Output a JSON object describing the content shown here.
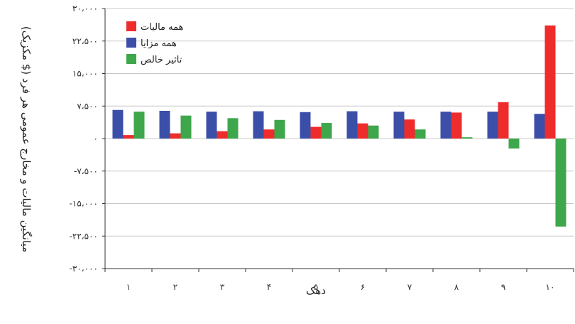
{
  "chart_data": {
    "type": "bar",
    "xlabel": "دهک",
    "ylabel": "میانگین مالیات و مخارج عمومی هر فرد ($ مکزیک)",
    "categories": [
      "۱",
      "۲",
      "۳",
      "۴",
      "۵",
      "۶",
      "۷",
      "۸",
      "۹",
      "۱۰"
    ],
    "ylim": [
      -30000,
      30000
    ],
    "yticks": [
      30000,
      22500,
      15000,
      7500,
      0,
      -7500,
      -15000,
      -22500,
      -30000
    ],
    "ytick_labels": [
      "۳۰،۰۰۰",
      "۲۲،۵۰۰",
      "۱۵،۰۰۰",
      "۷،۵۰۰",
      "۰",
      "-۷،۵۰۰",
      "-۱۵،۰۰۰",
      "-۲۲،۵۰۰",
      "-۳۰،۰۰۰"
    ],
    "grid": true,
    "legend_position": "top-left",
    "series": [
      {
        "name": "همه مزایا",
        "color": "#3c4fa8",
        "values": [
          6600,
          6400,
          6200,
          6300,
          6100,
          6300,
          6200,
          6200,
          6200,
          5700
        ]
      },
      {
        "name": "همه مالیات",
        "color": "#ee2c2c",
        "values": [
          800,
          1200,
          1700,
          2100,
          2700,
          3500,
          4400,
          6000,
          8400,
          26100
        ]
      },
      {
        "name": "تاثیر خالص",
        "color": "#3ea64b",
        "values": [
          6200,
          5300,
          4700,
          4300,
          3600,
          3000,
          2100,
          300,
          -2300,
          -20300
        ]
      }
    ],
    "legend_order": [
      "همه مالیات",
      "همه مزایا",
      "تاثیر خالص"
    ]
  }
}
